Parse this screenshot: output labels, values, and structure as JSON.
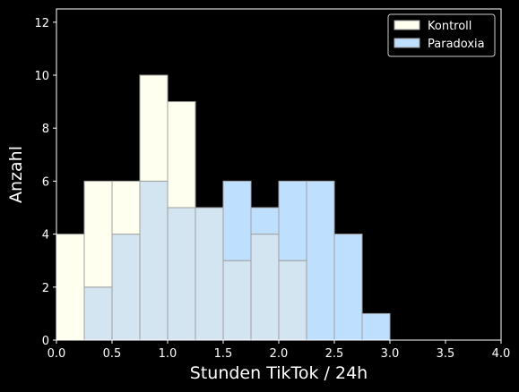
{
  "chart_data": {
    "type": "bar",
    "histogram": true,
    "xlabel": "Stunden TikTok / 24h",
    "ylabel": "Anzahl",
    "xlim": [
      0.0,
      4.0
    ],
    "ylim": [
      0,
      12.5
    ],
    "xticks": [
      "0.0",
      "0.5",
      "1.0",
      "1.5",
      "2.0",
      "2.5",
      "3.0",
      "3.5",
      "4.0"
    ],
    "yticks": [
      "0",
      "2",
      "4",
      "6",
      "8",
      "10",
      "12"
    ],
    "bin_width": 0.25,
    "bin_edges": [
      0.0,
      0.25,
      0.5,
      0.75,
      1.0,
      1.25,
      1.5,
      1.75,
      2.0,
      2.25,
      2.5,
      2.75,
      3.0,
      3.25,
      3.5,
      3.75,
      4.0
    ],
    "series": [
      {
        "name": "Kontroll",
        "color": "#fffff0",
        "values": [
          4,
          6,
          6,
          10,
          9,
          5,
          3,
          4,
          3,
          0,
          0,
          0,
          0,
          0,
          0,
          0
        ]
      },
      {
        "name": "Paradoxia",
        "color": "#bfdfff",
        "values": [
          0,
          2,
          4,
          6,
          5,
          5,
          6,
          5,
          6,
          6,
          4,
          1,
          0,
          0,
          0,
          0
        ]
      }
    ],
    "overlap_color": "#d2e5f0",
    "edge_color": "#a0a0a0",
    "legend_position": "top-right",
    "grid": false,
    "background": "#000000",
    "text_color": "#ffffff"
  }
}
